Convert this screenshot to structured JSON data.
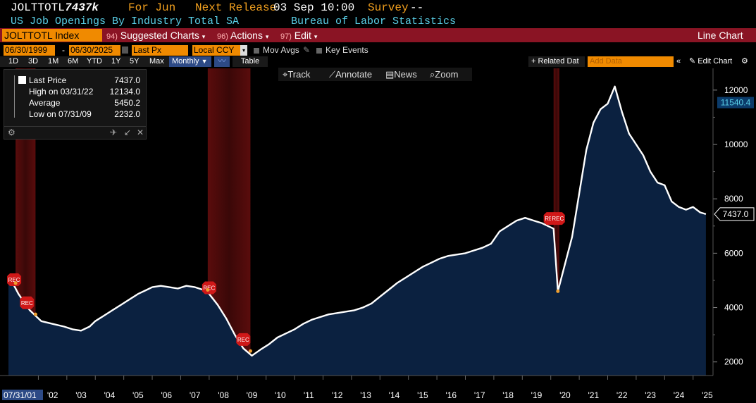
{
  "header": {
    "ticker": "JOLTTOTL",
    "last_value": "7437k",
    "period_label": "For Jun",
    "next_release_label": "Next Release",
    "next_release_value": "03 Sep 10:00",
    "survey_label": "Survey",
    "survey_value": "--",
    "series_name": "US Job Openings By Industry Total SA",
    "source": "Bureau of Labor Statistics"
  },
  "menubar": {
    "security": "JOLTTOTL Index",
    "suggested_num": "94)",
    "suggested": "Suggested Charts",
    "actions_num": "96)",
    "actions": "Actions",
    "edit_num": "97)",
    "edit": "Edit",
    "chart_type": "Line Chart"
  },
  "datebar": {
    "start": "06/30/1999",
    "end": "06/30/2025",
    "field": "Last Px",
    "currency": "Local CCY",
    "mov_avgs": "Mov Avgs",
    "key_events": "Key Events"
  },
  "toolbar": {
    "ranges": [
      "1D",
      "3D",
      "1M",
      "6M",
      "YTD",
      "1Y",
      "5Y",
      "Max"
    ],
    "frequency": "Monthly",
    "table": "Table",
    "related": "Related Dat",
    "add_data_placeholder": "Add Data",
    "edit_chart": "Edit Chart"
  },
  "tracker": {
    "track": "Track",
    "annotate": "Annotate",
    "news": "News",
    "zoom": "Zoom"
  },
  "legend": {
    "last_label": "Last Price",
    "last_value": "7437.0",
    "high_label": "High on 03/31/22",
    "high_value": "12134.0",
    "avg_label": "Average",
    "avg_value": "5450.2",
    "low_label": "Low on 07/31/09",
    "low_value": "2232.0"
  },
  "colors": {
    "line": "#ffffff",
    "area": "#0b2140",
    "recession": "#7a1010",
    "accent": "#f08a00",
    "menubar": "#8a1424"
  },
  "chart_data": {
    "type": "area",
    "title": "",
    "xlabel": "",
    "ylabel": "",
    "ylim": [
      1500,
      12800
    ],
    "y_ticks": [
      2000,
      4000,
      6000,
      8000,
      10000,
      12000
    ],
    "x_tick_labels": [
      "'02",
      "'03",
      "'04",
      "'05",
      "'06",
      "'07",
      "'08",
      "'09",
      "'10",
      "'11",
      "'12",
      "'13",
      "'14",
      "'15",
      "'16",
      "'17",
      "'18",
      "'19",
      "'20",
      "'21",
      "'22",
      "'23",
      "'24",
      "'25"
    ],
    "x_start_label": "07/31/01",
    "value_tags": [
      "11540.4",
      "7437.0"
    ],
    "recession_label": "REC",
    "recessions": [
      [
        2001.2,
        2001.9
      ],
      [
        2007.95,
        2009.45
      ],
      [
        2020.1,
        2020.3
      ]
    ],
    "series": [
      {
        "x": [
          2000.95,
          2001.1,
          2001.3,
          2001.5,
          2001.7,
          2001.9,
          2002.1,
          2002.5,
          2002.9,
          2003.2,
          2003.5,
          2003.8,
          2004.0,
          2004.3,
          2004.6,
          2004.9,
          2005.2,
          2005.5,
          2005.8,
          2006.0,
          2006.3,
          2006.6,
          2006.9,
          2007.2,
          2007.5,
          2007.8,
          2008.0,
          2008.3,
          2008.6,
          2008.9,
          2009.2,
          2009.5,
          2009.8,
          2010.1,
          2010.4,
          2010.7,
          2011.0,
          2011.3,
          2011.6,
          2011.9,
          2012.2,
          2012.5,
          2012.8,
          2013.1,
          2013.4,
          2013.7,
          2014.0,
          2014.3,
          2014.6,
          2014.9,
          2015.2,
          2015.5,
          2015.8,
          2016.1,
          2016.4,
          2016.7,
          2017.0,
          2017.3,
          2017.6,
          2017.9,
          2018.2,
          2018.5,
          2018.8,
          2019.1,
          2019.4,
          2019.7,
          2019.9,
          2020.1,
          2020.25,
          2020.5,
          2020.75,
          2021.0,
          2021.25,
          2021.5,
          2021.75,
          2022.0,
          2022.25,
          2022.5,
          2022.75,
          2023.0,
          2023.25,
          2023.5,
          2023.75,
          2024.0,
          2024.25,
          2024.5,
          2024.75,
          2025.0,
          2025.25,
          2025.45
        ],
        "values": [
          5200,
          4900,
          4500,
          4200,
          3900,
          3700,
          3500,
          3400,
          3300,
          3200,
          3150,
          3300,
          3500,
          3700,
          3900,
          4100,
          4300,
          4500,
          4650,
          4750,
          4800,
          4750,
          4700,
          4800,
          4750,
          4650,
          4500,
          4100,
          3600,
          3000,
          2500,
          2232,
          2450,
          2650,
          2900,
          3050,
          3200,
          3400,
          3550,
          3650,
          3750,
          3800,
          3850,
          3900,
          4000,
          4150,
          4400,
          4650,
          4900,
          5100,
          5300,
          5500,
          5650,
          5800,
          5900,
          5950,
          6000,
          6100,
          6200,
          6350,
          6800,
          7000,
          7200,
          7300,
          7200,
          7100,
          7000,
          6900,
          4600,
          5600,
          6600,
          8200,
          9800,
          10800,
          11300,
          11500,
          12134,
          11200,
          10400,
          10000,
          9600,
          9000,
          8600,
          8500,
          7900,
          7700,
          7600,
          7700,
          7500,
          7437
        ]
      }
    ]
  }
}
